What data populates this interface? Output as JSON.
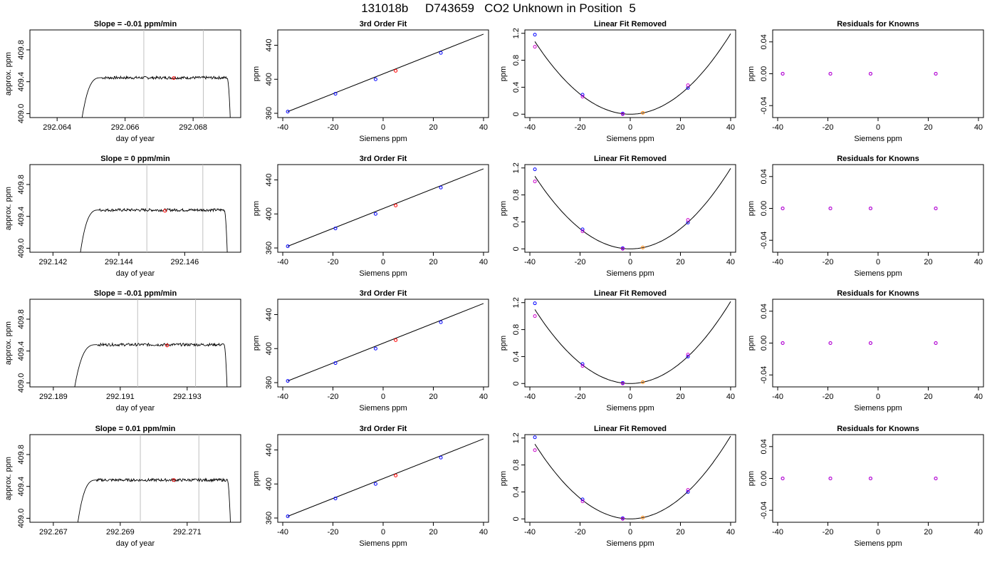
{
  "page_title": "131018b     D743659   CO2 Unknown in Position  5",
  "colors": {
    "blue": "#0000ff",
    "magenta": "#cc00cc",
    "red": "#ff0000",
    "orange": "#ff8000",
    "line": "#000000",
    "vline": "#c0c0c0"
  },
  "chart_data": [
    {
      "type": "line",
      "panel": "drift",
      "row": 1,
      "title": "Slope =  -0.01  ppm/min",
      "xlabel": "day of year",
      "ylabel": "approx. ppm",
      "xlim": [
        292.0632,
        292.0694
      ],
      "ylim": [
        408.95,
        410.05
      ],
      "xticks": [
        292.064,
        292.066,
        292.068
      ],
      "xtick_labels": [
        "292.064",
        "292.066",
        "292.068"
      ],
      "yticks": [
        409.0,
        409.4,
        409.8
      ],
      "ytick_labels": [
        "409.0",
        "409.4",
        "409.8"
      ],
      "trace": {
        "x_start": 292.0647,
        "x_end": 292.0691,
        "plateau": 409.45,
        "plateau_start": 292.0653,
        "plateau_end": 292.069
      },
      "vlines": [
        292.06655,
        292.0683
      ],
      "marker": {
        "x": 292.06743,
        "y": 409.445
      }
    },
    {
      "type": "line",
      "panel": "drift",
      "row": 2,
      "title": "Slope =  0  ppm/min",
      "xlabel": "day of year",
      "ylabel": "approx. ppm",
      "xlim": [
        292.1413,
        292.1477
      ],
      "ylim": [
        408.95,
        410.05
      ],
      "xticks": [
        292.142,
        292.144,
        292.146
      ],
      "xtick_labels": [
        "292.142",
        "292.144",
        "292.146"
      ],
      "yticks": [
        409.0,
        409.4,
        409.8
      ],
      "ytick_labels": [
        "409.0",
        "409.4",
        "409.8"
      ],
      "trace": {
        "x_start": 292.1428,
        "x_end": 292.1473,
        "plateau": 409.48,
        "plateau_start": 292.1434,
        "plateau_end": 292.1472
      },
      "vlines": [
        292.14485,
        292.14655
      ],
      "marker": {
        "x": 292.1454,
        "y": 409.47
      }
    },
    {
      "type": "line",
      "panel": "drift",
      "row": 3,
      "title": "Slope =  -0.01  ppm/min",
      "xlabel": "day of year",
      "ylabel": "approx. ppm",
      "xlim": [
        292.1883,
        292.1946
      ],
      "ylim": [
        408.95,
        410.05
      ],
      "xticks": [
        292.189,
        292.191,
        292.193
      ],
      "xtick_labels": [
        "292.189",
        "292.191",
        "292.193"
      ],
      "yticks": [
        409.0,
        409.4,
        409.8
      ],
      "ytick_labels": [
        "409.0",
        "409.4",
        "409.8"
      ],
      "trace": {
        "x_start": 292.1896,
        "x_end": 292.1942,
        "plateau": 409.48,
        "plateau_start": 292.1903,
        "plateau_end": 292.1941
      },
      "vlines": [
        292.19152,
        292.19325
      ],
      "marker": {
        "x": 292.1924,
        "y": 409.47
      }
    },
    {
      "type": "line",
      "panel": "drift",
      "row": 4,
      "title": "Slope =  0.01  ppm/min",
      "xlabel": "day of year",
      "ylabel": "approx. ppm",
      "xlim": [
        292.2663,
        292.2726
      ],
      "ylim": [
        408.95,
        410.05
      ],
      "xticks": [
        292.267,
        292.269,
        292.271
      ],
      "xtick_labels": [
        "292.267",
        "292.269",
        "292.271"
      ],
      "yticks": [
        409.0,
        409.4,
        409.8
      ],
      "ytick_labels": [
        "409.0",
        "409.4",
        "409.8"
      ],
      "trace": {
        "x_start": 292.2677,
        "x_end": 292.2723,
        "plateau": 409.48,
        "plateau_start": 292.2683,
        "plateau_end": 292.2722
      },
      "vlines": [
        292.2696,
        292.27135
      ],
      "marker": {
        "x": 292.2706,
        "y": 409.48
      }
    },
    {
      "type": "scatter",
      "panel": "fit",
      "row": 1,
      "title": "3rd Order Fit",
      "xlabel": "Siemens ppm",
      "ylabel": "ppm",
      "xlim": [
        -42,
        42
      ],
      "ylim": [
        355,
        458
      ],
      "xticks": [
        -40,
        -20,
        0,
        20,
        40
      ],
      "yticks": [
        360,
        400,
        440
      ],
      "line": {
        "x": [
          -38,
          40
        ],
        "y": [
          362,
          453
        ]
      },
      "points": [
        {
          "x": -38,
          "y": 362,
          "c": "blue"
        },
        {
          "x": -19,
          "y": 383,
          "c": "blue"
        },
        {
          "x": -3,
          "y": 400,
          "c": "blue"
        },
        {
          "x": 23,
          "y": 431,
          "c": "blue"
        },
        {
          "x": 5,
          "y": 410,
          "c": "red"
        }
      ]
    },
    {
      "type": "scatter",
      "panel": "fit",
      "row": 2,
      "title": "3rd Order Fit",
      "xlabel": "Siemens ppm",
      "ylabel": "ppm",
      "xlim": [
        -42,
        42
      ],
      "ylim": [
        355,
        458
      ],
      "xticks": [
        -40,
        -20,
        0,
        20,
        40
      ],
      "yticks": [
        360,
        400,
        440
      ],
      "line": {
        "x": [
          -38,
          40
        ],
        "y": [
          362,
          453
        ]
      },
      "points": [
        {
          "x": -38,
          "y": 362,
          "c": "blue"
        },
        {
          "x": -19,
          "y": 383,
          "c": "blue"
        },
        {
          "x": -3,
          "y": 400,
          "c": "blue"
        },
        {
          "x": 23,
          "y": 431,
          "c": "blue"
        },
        {
          "x": 5,
          "y": 410,
          "c": "red"
        }
      ]
    },
    {
      "type": "scatter",
      "panel": "fit",
      "row": 3,
      "title": "3rd Order Fit",
      "xlabel": "Siemens ppm",
      "ylabel": "ppm",
      "xlim": [
        -42,
        42
      ],
      "ylim": [
        355,
        458
      ],
      "xticks": [
        -40,
        -20,
        0,
        20,
        40
      ],
      "yticks": [
        360,
        400,
        440
      ],
      "line": {
        "x": [
          -38,
          40
        ],
        "y": [
          362,
          453
        ]
      },
      "points": [
        {
          "x": -38,
          "y": 362,
          "c": "blue"
        },
        {
          "x": -19,
          "y": 383,
          "c": "blue"
        },
        {
          "x": -3,
          "y": 400,
          "c": "blue"
        },
        {
          "x": 23,
          "y": 431,
          "c": "blue"
        },
        {
          "x": 5,
          "y": 410,
          "c": "red"
        }
      ]
    },
    {
      "type": "scatter",
      "panel": "fit",
      "row": 4,
      "title": "3rd Order Fit",
      "xlabel": "Siemens ppm",
      "ylabel": "ppm",
      "xlim": [
        -42,
        42
      ],
      "ylim": [
        355,
        458
      ],
      "xticks": [
        -40,
        -20,
        0,
        20,
        40
      ],
      "yticks": [
        360,
        400,
        440
      ],
      "line": {
        "x": [
          -38,
          40
        ],
        "y": [
          362,
          453
        ]
      },
      "points": [
        {
          "x": -38,
          "y": 362,
          "c": "blue"
        },
        {
          "x": -19,
          "y": 383,
          "c": "blue"
        },
        {
          "x": -3,
          "y": 400,
          "c": "blue"
        },
        {
          "x": 23,
          "y": 431,
          "c": "blue"
        },
        {
          "x": 5,
          "y": 410,
          "c": "red"
        }
      ]
    },
    {
      "type": "scatter",
      "panel": "linfit",
      "row": 1,
      "title": "Linear Fit Removed",
      "xlabel": "Siemens ppm",
      "ylabel": "ppm",
      "xlim": [
        -42,
        42
      ],
      "ylim": [
        -0.05,
        1.25
      ],
      "xticks": [
        -40,
        -20,
        0,
        20,
        40
      ],
      "yticks": [
        0.0,
        0.4,
        0.8,
        1.2
      ],
      "curve": {
        "a": 0.000746,
        "x0": 0,
        "c": 0,
        "xmin": -38,
        "xmax": 40
      },
      "points": [
        {
          "x": -38,
          "y": 1.18,
          "c": "blue"
        },
        {
          "x": -19,
          "y": 0.29,
          "c": "blue"
        },
        {
          "x": -3,
          "y": 0.01,
          "c": "blue"
        },
        {
          "x": 23,
          "y": 0.39,
          "c": "blue"
        },
        {
          "x": -38,
          "y": 1.0,
          "c": "magenta"
        },
        {
          "x": -19,
          "y": 0.26,
          "c": "magenta"
        },
        {
          "x": -3,
          "y": 0.0,
          "c": "magenta"
        },
        {
          "x": 23,
          "y": 0.43,
          "c": "magenta"
        },
        {
          "x": 5,
          "y": 0.02,
          "c": "orange"
        }
      ]
    },
    {
      "type": "scatter",
      "panel": "linfit",
      "row": 2,
      "title": "Linear Fit Removed",
      "xlabel": "Siemens ppm",
      "ylabel": "ppm",
      "xlim": [
        -42,
        42
      ],
      "ylim": [
        -0.05,
        1.25
      ],
      "xticks": [
        -40,
        -20,
        0,
        20,
        40
      ],
      "yticks": [
        0.0,
        0.4,
        0.8,
        1.2
      ],
      "curve": {
        "a": 0.000746,
        "x0": 0,
        "c": 0,
        "xmin": -38,
        "xmax": 40
      },
      "points": [
        {
          "x": -38,
          "y": 1.18,
          "c": "blue"
        },
        {
          "x": -19,
          "y": 0.29,
          "c": "blue"
        },
        {
          "x": -3,
          "y": 0.01,
          "c": "blue"
        },
        {
          "x": 23,
          "y": 0.39,
          "c": "blue"
        },
        {
          "x": -38,
          "y": 1.0,
          "c": "magenta"
        },
        {
          "x": -19,
          "y": 0.26,
          "c": "magenta"
        },
        {
          "x": -3,
          "y": 0.0,
          "c": "magenta"
        },
        {
          "x": 23,
          "y": 0.43,
          "c": "magenta"
        },
        {
          "x": 5,
          "y": 0.02,
          "c": "orange"
        }
      ]
    },
    {
      "type": "scatter",
      "panel": "linfit",
      "row": 3,
      "title": "Linear Fit Removed",
      "xlabel": "Siemens ppm",
      "ylabel": "ppm",
      "xlim": [
        -42,
        42
      ],
      "ylim": [
        -0.05,
        1.25
      ],
      "xticks": [
        -40,
        -20,
        0,
        20,
        40
      ],
      "yticks": [
        0.0,
        0.4,
        0.8,
        1.2
      ],
      "curve": {
        "a": 0.00076,
        "x0": 0,
        "c": 0,
        "xmin": -38,
        "xmax": 40
      },
      "points": [
        {
          "x": -38,
          "y": 1.19,
          "c": "blue"
        },
        {
          "x": -19,
          "y": 0.29,
          "c": "blue"
        },
        {
          "x": -3,
          "y": 0.01,
          "c": "blue"
        },
        {
          "x": 23,
          "y": 0.4,
          "c": "blue"
        },
        {
          "x": -38,
          "y": 1.0,
          "c": "magenta"
        },
        {
          "x": -19,
          "y": 0.26,
          "c": "magenta"
        },
        {
          "x": -3,
          "y": 0.0,
          "c": "magenta"
        },
        {
          "x": 23,
          "y": 0.43,
          "c": "magenta"
        },
        {
          "x": 5,
          "y": 0.02,
          "c": "orange"
        }
      ]
    },
    {
      "type": "scatter",
      "panel": "linfit",
      "row": 4,
      "title": "Linear Fit Removed",
      "xlabel": "Siemens ppm",
      "ylabel": "ppm",
      "xlim": [
        -42,
        42
      ],
      "ylim": [
        -0.05,
        1.25
      ],
      "xticks": [
        -40,
        -20,
        0,
        20,
        40
      ],
      "yticks": [
        0.0,
        0.4,
        0.8,
        1.2
      ],
      "curve": {
        "a": 0.000768,
        "x0": 0,
        "c": 0,
        "xmin": -38,
        "xmax": 40
      },
      "points": [
        {
          "x": -38,
          "y": 1.21,
          "c": "blue"
        },
        {
          "x": -19,
          "y": 0.29,
          "c": "blue"
        },
        {
          "x": -3,
          "y": 0.01,
          "c": "blue"
        },
        {
          "x": 23,
          "y": 0.4,
          "c": "blue"
        },
        {
          "x": -38,
          "y": 1.02,
          "c": "magenta"
        },
        {
          "x": -19,
          "y": 0.26,
          "c": "magenta"
        },
        {
          "x": -3,
          "y": 0.0,
          "c": "magenta"
        },
        {
          "x": 23,
          "y": 0.43,
          "c": "magenta"
        },
        {
          "x": 5,
          "y": 0.02,
          "c": "orange"
        }
      ]
    },
    {
      "type": "scatter",
      "panel": "resid",
      "row": 1,
      "title": "Residuals for Knowns",
      "xlabel": "Siemens ppm",
      "ylabel": "ppm",
      "xlim": [
        -42,
        42
      ],
      "ylim": [
        -0.055,
        0.055
      ],
      "xticks": [
        -40,
        -20,
        0,
        20,
        40
      ],
      "yticks": [
        -0.04,
        0.0,
        0.04
      ],
      "ytick_labels": [
        "-0.04",
        "0.00",
        "0.04"
      ],
      "points": [
        {
          "x": -38,
          "y": 0,
          "c": "blue"
        },
        {
          "x": -19,
          "y": 0,
          "c": "blue"
        },
        {
          "x": -3,
          "y": 0,
          "c": "blue"
        },
        {
          "x": 23,
          "y": 0,
          "c": "blue"
        },
        {
          "x": -38,
          "y": 0,
          "c": "magenta"
        },
        {
          "x": -19,
          "y": 0,
          "c": "magenta"
        },
        {
          "x": -3,
          "y": 0,
          "c": "magenta"
        },
        {
          "x": 23,
          "y": 0,
          "c": "magenta"
        }
      ]
    },
    {
      "type": "scatter",
      "panel": "resid",
      "row": 2,
      "title": "Residuals for Knowns",
      "xlabel": "Siemens ppm",
      "ylabel": "ppm",
      "xlim": [
        -42,
        42
      ],
      "ylim": [
        -0.055,
        0.055
      ],
      "xticks": [
        -40,
        -20,
        0,
        20,
        40
      ],
      "yticks": [
        -0.04,
        0.0,
        0.04
      ],
      "ytick_labels": [
        "-0.04",
        "0.00",
        "0.04"
      ],
      "points": [
        {
          "x": -38,
          "y": 0,
          "c": "blue"
        },
        {
          "x": -19,
          "y": 0,
          "c": "blue"
        },
        {
          "x": -3,
          "y": 0,
          "c": "blue"
        },
        {
          "x": 23,
          "y": 0,
          "c": "blue"
        },
        {
          "x": -38,
          "y": 0,
          "c": "magenta"
        },
        {
          "x": -19,
          "y": 0,
          "c": "magenta"
        },
        {
          "x": -3,
          "y": 0,
          "c": "magenta"
        },
        {
          "x": 23,
          "y": 0,
          "c": "magenta"
        }
      ]
    },
    {
      "type": "scatter",
      "panel": "resid",
      "row": 3,
      "title": "Residuals for Knowns",
      "xlabel": "Siemens ppm",
      "ylabel": "ppm",
      "xlim": [
        -42,
        42
      ],
      "ylim": [
        -0.055,
        0.055
      ],
      "xticks": [
        -40,
        -20,
        0,
        20,
        40
      ],
      "yticks": [
        -0.04,
        0.0,
        0.04
      ],
      "ytick_labels": [
        "-0.04",
        "0.00",
        "0.04"
      ],
      "points": [
        {
          "x": -38,
          "y": 0,
          "c": "blue"
        },
        {
          "x": -19,
          "y": 0,
          "c": "blue"
        },
        {
          "x": -3,
          "y": 0,
          "c": "blue"
        },
        {
          "x": 23,
          "y": 0,
          "c": "blue"
        },
        {
          "x": -38,
          "y": 0,
          "c": "magenta"
        },
        {
          "x": -19,
          "y": 0,
          "c": "magenta"
        },
        {
          "x": -3,
          "y": 0,
          "c": "magenta"
        },
        {
          "x": 23,
          "y": 0,
          "c": "magenta"
        }
      ]
    },
    {
      "type": "scatter",
      "panel": "resid",
      "row": 4,
      "title": "Residuals for Knowns",
      "xlabel": "Siemens ppm",
      "ylabel": "ppm",
      "xlim": [
        -42,
        42
      ],
      "ylim": [
        -0.055,
        0.055
      ],
      "xticks": [
        -40,
        -20,
        0,
        20,
        40
      ],
      "yticks": [
        -0.04,
        0.0,
        0.04
      ],
      "ytick_labels": [
        "-0.04",
        "0.00",
        "0.04"
      ],
      "points": [
        {
          "x": -38,
          "y": 0,
          "c": "blue"
        },
        {
          "x": -19,
          "y": 0,
          "c": "blue"
        },
        {
          "x": -3,
          "y": 0,
          "c": "blue"
        },
        {
          "x": 23,
          "y": 0,
          "c": "blue"
        },
        {
          "x": -38,
          "y": 0,
          "c": "magenta"
        },
        {
          "x": -19,
          "y": 0,
          "c": "magenta"
        },
        {
          "x": -3,
          "y": 0,
          "c": "magenta"
        },
        {
          "x": 23,
          "y": 0,
          "c": "magenta"
        }
      ]
    }
  ]
}
